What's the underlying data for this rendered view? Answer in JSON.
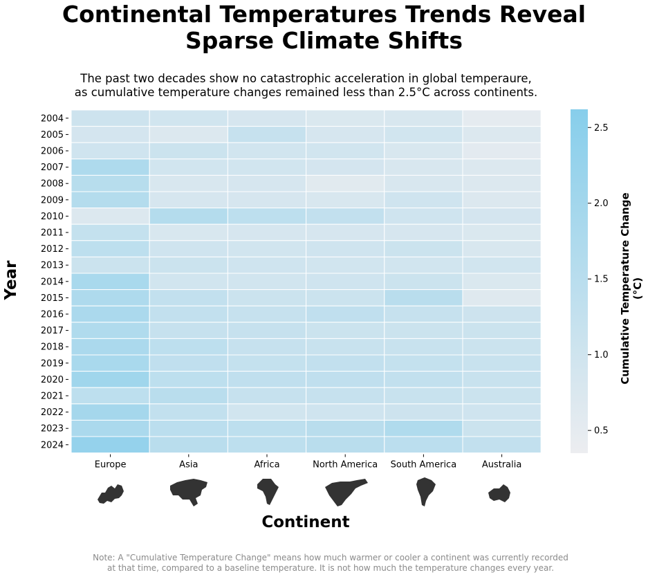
{
  "chart_data": {
    "type": "heatmap",
    "title_lines": [
      "Continental Temperatures Trends Reveal",
      "Sparse Climate Shifts"
    ],
    "subtitle_lines": [
      "The past two decades show no catastrophic acceleration in global temperaure,",
      "as cumulative temperature changes remained less than 2.5°C across continents."
    ],
    "xlabel": "Continent",
    "ylabel": "Year",
    "x_categories": [
      "Europe",
      "Asia",
      "Africa",
      "North America",
      "South America",
      "Australia"
    ],
    "continent_icons": [
      "europe-map-icon",
      "asia-map-icon",
      "africa-map-icon",
      "north-america-map-icon",
      "south-america-map-icon",
      "australia-map-icon"
    ],
    "y_categories": [
      "2004",
      "2005",
      "2006",
      "2007",
      "2008",
      "2009",
      "2010",
      "2011",
      "2012",
      "2013",
      "2014",
      "2015",
      "2016",
      "2017",
      "2018",
      "2019",
      "2020",
      "2021",
      "2022",
      "2023",
      "2024"
    ],
    "values": [
      [
        1.05,
        0.95,
        0.85,
        0.75,
        0.8,
        0.5
      ],
      [
        0.9,
        0.7,
        1.2,
        0.85,
        0.95,
        0.7
      ],
      [
        1.0,
        1.1,
        0.95,
        0.95,
        0.8,
        0.55
      ],
      [
        1.75,
        0.95,
        0.95,
        0.9,
        0.8,
        0.7
      ],
      [
        1.55,
        0.8,
        0.85,
        0.6,
        0.8,
        0.7
      ],
      [
        1.6,
        0.85,
        0.85,
        0.8,
        1.0,
        0.7
      ],
      [
        0.7,
        1.6,
        1.4,
        1.3,
        1.0,
        0.9
      ],
      [
        1.25,
        0.8,
        0.85,
        0.85,
        0.85,
        0.75
      ],
      [
        1.4,
        1.0,
        0.95,
        1.0,
        1.1,
        0.8
      ],
      [
        1.1,
        1.1,
        1.0,
        0.95,
        0.95,
        0.95
      ],
      [
        1.85,
        0.95,
        0.95,
        1.0,
        1.1,
        0.75
      ],
      [
        1.75,
        1.3,
        1.1,
        1.1,
        1.5,
        0.65
      ],
      [
        1.8,
        1.3,
        1.2,
        1.35,
        1.2,
        1.05
      ],
      [
        1.7,
        1.2,
        1.2,
        1.1,
        1.1,
        1.1
      ],
      [
        1.8,
        1.4,
        1.2,
        1.15,
        1.15,
        1.1
      ],
      [
        1.85,
        1.35,
        1.25,
        1.3,
        1.25,
        1.15
      ],
      [
        2.05,
        1.4,
        1.35,
        1.35,
        1.3,
        1.15
      ],
      [
        1.4,
        1.5,
        1.2,
        1.2,
        1.15,
        1.1
      ],
      [
        1.95,
        1.3,
        0.95,
        1.0,
        1.05,
        1.0
      ],
      [
        1.8,
        1.45,
        1.4,
        1.5,
        1.7,
        1.1
      ],
      [
        2.3,
        1.5,
        1.4,
        1.5,
        1.45,
        1.3
      ]
    ],
    "colorbar": {
      "label": "Cumulative Temperature Change (°C)",
      "range": [
        0.35,
        2.62
      ],
      "ticks": [
        0.5,
        1.0,
        1.5,
        2.0,
        2.5
      ],
      "tick_labels": [
        "0.5",
        "1.0",
        "1.5",
        "2.0",
        "2.5"
      ],
      "color_low": "#ecedf0",
      "color_high": "#87ceeb"
    },
    "note_lines": [
      "Note: A \"Cumulative Temperature Change\" means how much warmer or cooler a continent was currently recorded",
      "at that time, compared to a baseline temperature. It is not how much the temperature changes every year."
    ]
  }
}
